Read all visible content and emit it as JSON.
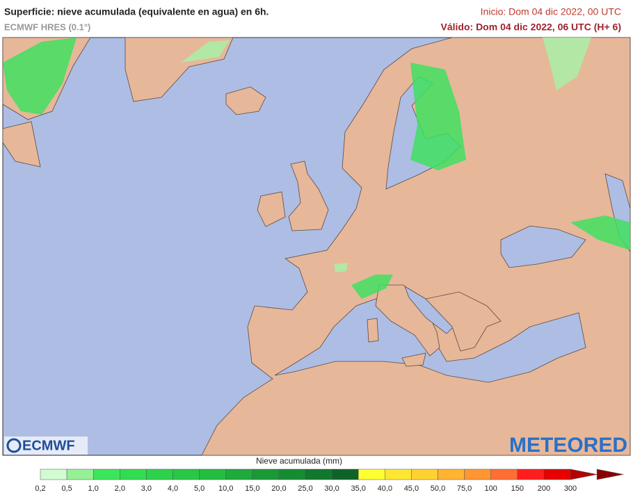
{
  "header": {
    "title": "Superficie: nieve acumulada (equivalente en agua) en 6h.",
    "model": "ECMWF HRES (0.1°)",
    "init": "Inicio: Dom 04 dic 2022, 00 UTC",
    "valid": "Válido: Dom 04 dic 2022, 06 UTC (H+ 6)"
  },
  "logos": {
    "left": "ECMWF",
    "right": "METEORED"
  },
  "legend": {
    "title": "Nieve acumulada (mm)",
    "labels": [
      "0,2",
      "0,5",
      "1,0",
      "2,0",
      "3,0",
      "4,0",
      "5,0",
      "10,0",
      "15,0",
      "20,0",
      "25,0",
      "30,0",
      "35,0",
      "40,0",
      "45,0",
      "50,0",
      "75,0",
      "100",
      "150",
      "200",
      "300"
    ],
    "colors": [
      "#d2fbd2",
      "#96f096",
      "#3ce65a",
      "#32dc50",
      "#2dd24b",
      "#28c846",
      "#23be41",
      "#1eaa3c",
      "#1a9a37",
      "#168c32",
      "#12782d",
      "#0e6428",
      "#ffff32",
      "#ffe632",
      "#ffd232",
      "#ffb432",
      "#ff9632",
      "#ff6e32",
      "#ff1e1e",
      "#e60000",
      "#b40000",
      "#8c0000"
    ]
  }
}
